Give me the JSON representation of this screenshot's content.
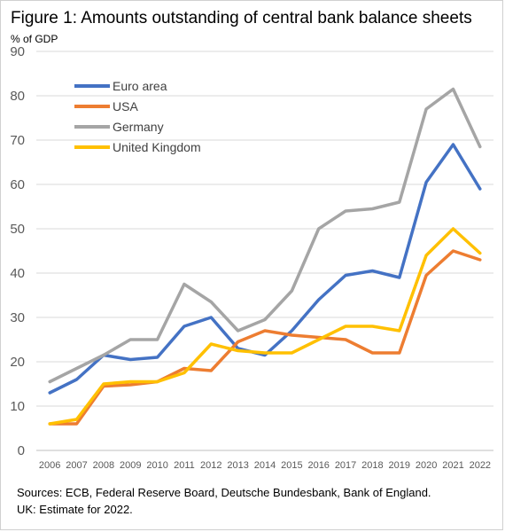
{
  "title": "Figure 1: Amounts outstanding of central bank balance sheets",
  "unit_label": "% of GDP",
  "sources": "Sources: ECB, Federal Reserve Board, Deutsche Bundesbank, Bank of England.",
  "note": "UK: Estimate for 2022.",
  "chart_data": {
    "type": "line",
    "title": "Figure 1: Amounts outstanding of central bank balance sheets",
    "ylabel": "% of GDP",
    "xlabel": "",
    "ylim": [
      0,
      90
    ],
    "yticks": [
      0,
      10,
      20,
      30,
      40,
      50,
      60,
      70,
      80,
      90
    ],
    "grid": true,
    "legend_position": "top-left",
    "x": [
      "2006",
      "2007",
      "2008",
      "2009",
      "2010",
      "2011",
      "2012",
      "2013",
      "2014",
      "2015",
      "2016",
      "2017",
      "2018",
      "2019",
      "2020",
      "2021",
      "2022"
    ],
    "series": [
      {
        "name": "Euro area",
        "color": "#4472C4",
        "values": [
          13,
          16,
          21.5,
          20.5,
          21,
          28,
          30,
          23,
          21.5,
          27,
          34,
          39.5,
          40.5,
          39,
          60.5,
          69,
          59
        ]
      },
      {
        "name": "USA",
        "color": "#ED7D31",
        "values": [
          6,
          6,
          14.5,
          14.8,
          15.5,
          18.5,
          18,
          24.5,
          27,
          26,
          25.5,
          25,
          22,
          22,
          39.5,
          45,
          43
        ]
      },
      {
        "name": "Germany",
        "color": "#A5A5A5",
        "values": [
          15.5,
          18.5,
          21.5,
          25,
          25,
          37.5,
          33.5,
          27,
          29.5,
          36,
          50,
          54,
          54.5,
          56,
          77,
          81.5,
          68.5
        ]
      },
      {
        "name": "United Kingdom",
        "color": "#FFC000",
        "values": [
          6,
          7,
          15,
          15.5,
          15.5,
          17.5,
          24,
          22.5,
          22,
          22,
          25,
          28,
          28,
          27,
          44,
          50,
          44.5
        ]
      }
    ]
  }
}
